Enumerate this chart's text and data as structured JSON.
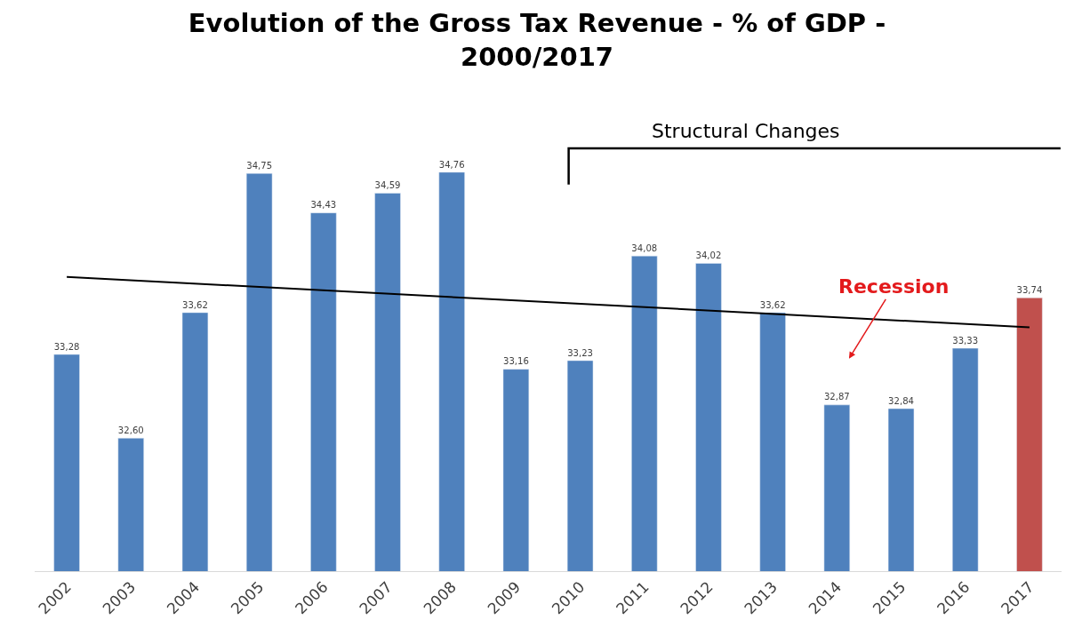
{
  "chart_data": {
    "type": "bar",
    "title": "Evolution of the Gross Tax Revenue - % of GDP -\n2000/2017",
    "categories": [
      "2002",
      "2003",
      "2004",
      "2005",
      "2006",
      "2007",
      "2008",
      "2009",
      "2010",
      "2011",
      "2012",
      "2013",
      "2014",
      "2015",
      "2016",
      "2017"
    ],
    "series": [
      {
        "colors": [
          "#4f81bd",
          "#4f81bd",
          "#4f81bd",
          "#4f81bd",
          "#4f81bd",
          "#4f81bd",
          "#4f81bd",
          "#4f81bd",
          "#4f81bd",
          "#4f81bd",
          "#4f81bd",
          "#4f81bd",
          "#4f81bd",
          "#4f81bd",
          "#4f81bd",
          "#c0504d"
        ],
        "values": [
          33.28,
          32.6,
          33.62,
          34.75,
          34.43,
          34.59,
          34.76,
          33.16,
          33.23,
          34.08,
          34.02,
          33.62,
          32.87,
          32.84,
          33.33,
          33.74
        ],
        "value_labels": [
          "33,28",
          "32,60",
          "33,62",
          "34,75",
          "34,43",
          "34,59",
          "34,76",
          "33,16",
          "33,23",
          "34,08",
          "34,02",
          "33,62",
          "32,87",
          "32,84",
          "33,33",
          "33,74"
        ]
      },
      {
        "type": "line",
        "color": "#000000",
        "values": [
          33.91,
          null,
          null,
          null,
          null,
          null,
          null,
          null,
          null,
          null,
          null,
          null,
          null,
          null,
          null,
          33.5
        ]
      }
    ],
    "tick_labels": "x",
    "annotations": [
      "Structural Changes",
      "Recession"
    ]
  }
}
